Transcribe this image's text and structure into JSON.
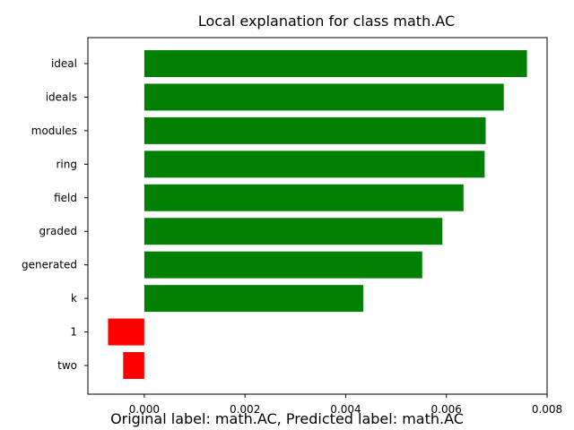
{
  "chart_data": {
    "type": "bar",
    "orientation": "horizontal",
    "title": "Local explanation for class math.AC",
    "xlabel": "",
    "ylabel": "",
    "xlim": [
      -0.00112,
      0.008
    ],
    "x_ticks": [
      0.0,
      0.002,
      0.004,
      0.006,
      0.008
    ],
    "x_tick_labels": [
      "0.000",
      "0.002",
      "0.004",
      "0.006",
      "0.008"
    ],
    "categories": [
      "ideal",
      "ideals",
      "modules",
      "ring",
      "field",
      "graded",
      "generated",
      "k",
      "1",
      "two"
    ],
    "values": [
      0.0076,
      0.00714,
      0.00678,
      0.00676,
      0.00634,
      0.00592,
      0.00552,
      0.00435,
      -0.00072,
      -0.00042
    ],
    "colors": {
      "positive": "#008000",
      "negative": "#ff0000"
    },
    "grid": false,
    "legend": "none"
  },
  "caption": "Original label: math.AC, Predicted label: math.AC"
}
